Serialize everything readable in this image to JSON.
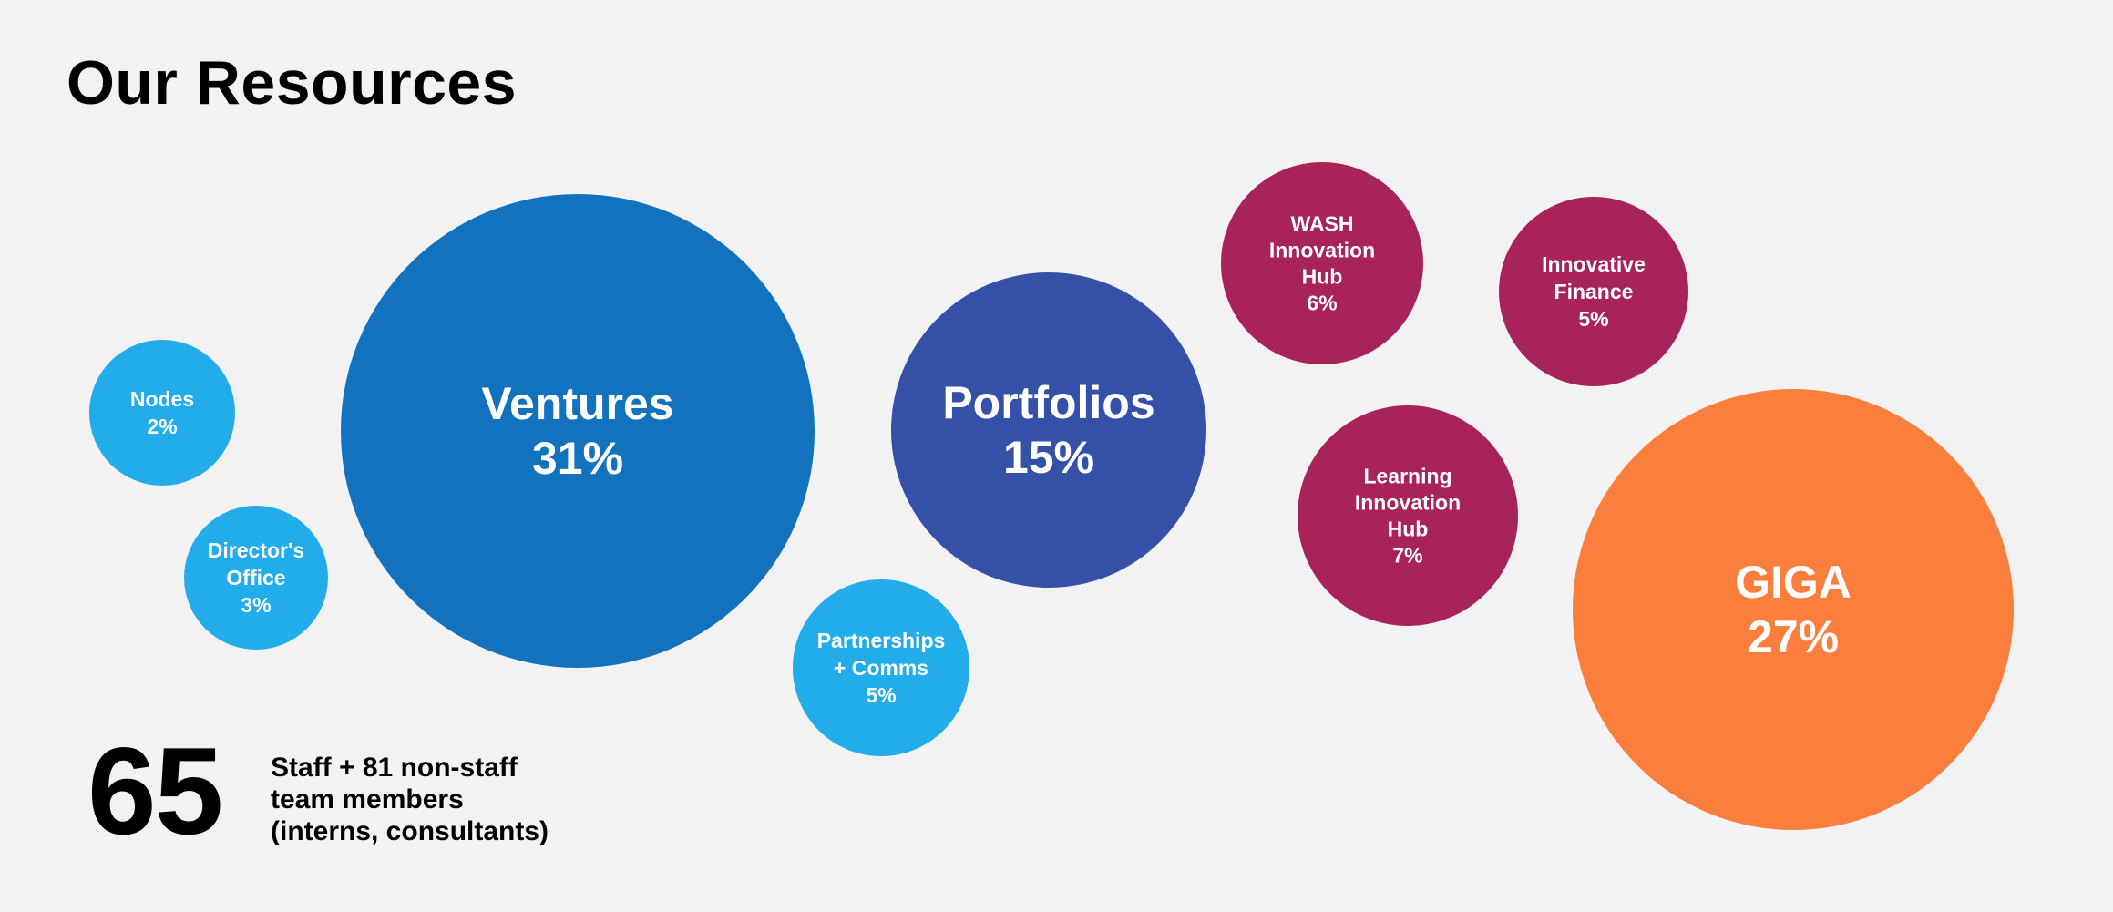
{
  "page": {
    "title": "Our Resources"
  },
  "summary": {
    "staff_count": "65",
    "note_lines": [
      "Staff  + 81 non-staff",
      "team members",
      "(interns, consultants)"
    ]
  },
  "colors": {
    "light_blue": "#22adea",
    "medium_blue": "#1272bd",
    "indigo": "#3451a7",
    "crimson": "#a7235a",
    "orange": "#fb7e3d",
    "background": "#f2f2f2"
  },
  "chart_data": {
    "type": "bubble",
    "title": "Our Resources",
    "unit": "%",
    "bubbles": [
      {
        "key": "nodes",
        "label_lines": [
          "Nodes",
          "2%"
        ],
        "value": 2,
        "color": "#22adea"
      },
      {
        "key": "directors-office",
        "label_lines": [
          "Director's",
          "Office",
          "3%"
        ],
        "value": 3,
        "color": "#22adea"
      },
      {
        "key": "ventures",
        "label_lines": [
          "Ventures",
          "31%"
        ],
        "value": 31,
        "color": "#1272bd"
      },
      {
        "key": "partnerships-comms",
        "label_lines": [
          "Partnerships",
          "+ Comms",
          "5%"
        ],
        "value": 5,
        "color": "#22adea"
      },
      {
        "key": "portfolios",
        "label_lines": [
          "Portfolios",
          "15%"
        ],
        "value": 15,
        "color": "#3451a7"
      },
      {
        "key": "wash-innovation-hub",
        "label_lines": [
          "WASH",
          "Innovation",
          "Hub",
          "6%"
        ],
        "value": 6,
        "color": "#a7235a"
      },
      {
        "key": "innovative-finance",
        "label_lines": [
          "Innovative",
          "Finance",
          "5%"
        ],
        "value": 5,
        "color": "#a7235a"
      },
      {
        "key": "learning-innovation-hub",
        "label_lines": [
          "Learning",
          "Innovation",
          "Hub",
          "7%"
        ],
        "value": 7,
        "color": "#a7235a"
      },
      {
        "key": "giga",
        "label_lines": [
          "GIGA",
          "27%"
        ],
        "value": 27,
        "color": "#fb7e3d"
      }
    ]
  }
}
